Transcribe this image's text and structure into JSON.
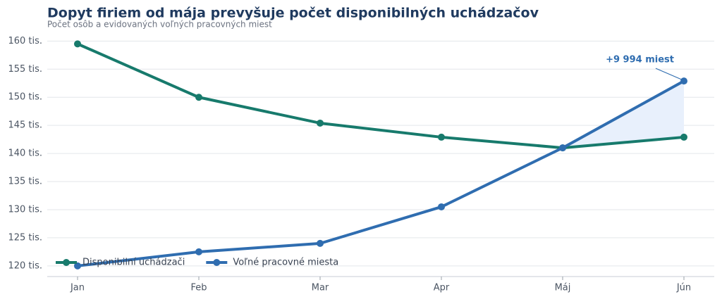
{
  "chart_data": {
    "type": "line",
    "title": "Dopyt firiem od mája prevyšuje počet disponibilných uchádzačov",
    "subtitle": "Počet osôb a evidovaných voľných pracovných miest",
    "categories": [
      "Jan",
      "Feb",
      "Mar",
      "Apr",
      "Máj",
      "Jún"
    ],
    "series": [
      {
        "name": "Disponibilní uchádzači",
        "color": "#177a6c",
        "values": [
          159500,
          150000,
          145400,
          142900,
          141000,
          142900
        ]
      },
      {
        "name": "Voľné pracovné miesta",
        "color": "#2f6db0",
        "values": [
          120000,
          122500,
          124000,
          130500,
          141000,
          152894
        ]
      }
    ],
    "ylim": [
      118100,
      162300
    ],
    "yticks": [
      {
        "value": 120000,
        "label": "120 tis."
      },
      {
        "value": 125000,
        "label": "125 tis."
      },
      {
        "value": 130000,
        "label": "130 tis."
      },
      {
        "value": 135000,
        "label": "135 tis."
      },
      {
        "value": 140000,
        "label": "140 tis."
      },
      {
        "value": 145000,
        "label": "145 tis."
      },
      {
        "value": 150000,
        "label": "150 tis."
      },
      {
        "value": 155000,
        "label": "155 tis."
      },
      {
        "value": 160000,
        "label": "160 tis."
      }
    ],
    "grid": true,
    "legend": "lower left",
    "highlight_color": "#e8f0fc",
    "annotation": "+9 994 miest"
  }
}
